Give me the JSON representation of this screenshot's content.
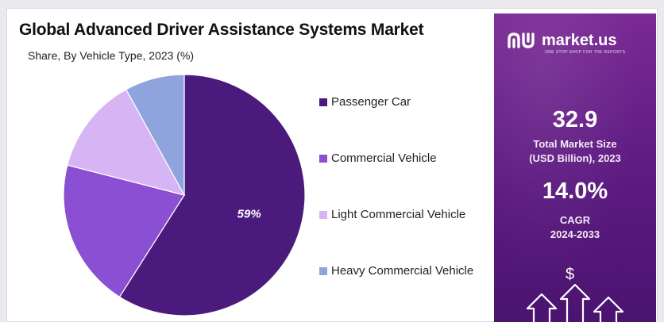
{
  "header": {
    "title": "Global Advanced Driver Assistance Systems Market",
    "subtitle": "Share, By Vehicle Type, 2023 (%)"
  },
  "chart_data": {
    "type": "pie",
    "title": "Global Advanced Driver Assistance Systems Market",
    "subtitle": "Share, By Vehicle Type, 2023 (%)",
    "categories": [
      "Passenger Car",
      "Commercial Vehicle",
      "Light Commercial Vehicle",
      "Heavy Commercial Vehicle"
    ],
    "values": [
      59,
      20,
      13,
      8
    ],
    "colors": [
      "#4b1a7d",
      "#8a4fd3",
      "#d7b4f3",
      "#8fa3dd"
    ],
    "data_labels": [
      "59%",
      "",
      "",
      ""
    ],
    "legend_position": "right"
  },
  "sidebar": {
    "brand_name": "market.us",
    "brand_tagline": "ONE STOP SHOP FOR THE REPORTS",
    "market_size_value": "32.9",
    "market_size_label_line1": "Total Market Size",
    "market_size_label_line2": "(USD Billion), 2023",
    "cagr_value": "14.0%",
    "cagr_label_line1": "CAGR",
    "cagr_label_line2": "2024-2033",
    "dollar_symbol": "$",
    "icons": [
      "market-us-logo-icon",
      "dollar-icon",
      "up-arrows-icon"
    ]
  }
}
